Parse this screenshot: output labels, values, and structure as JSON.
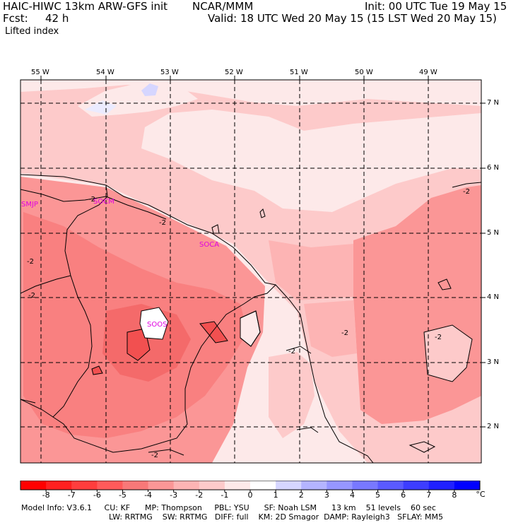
{
  "header": {
    "model_title": "HAIC-HIWC 13km ARW-GFS init",
    "org": "NCAR/MMM",
    "init": "Init: 00 UTC Tue 19 May 15",
    "fcst_label": "Fcst:",
    "fcst_value": "42 h",
    "valid": "Valid: 18 UTC Wed 20 May 15 (15 LST Wed 20 May 15)",
    "field": "Lifted index"
  },
  "map": {
    "lon_labels": [
      "55 W",
      "54 W",
      "53 W",
      "52 W",
      "51 W",
      "50 W",
      "49 W"
    ],
    "lat_labels": [
      "7 N",
      "6 N",
      "5 N",
      "4 N",
      "3 N",
      "2 N"
    ],
    "stations": [
      "SMJP",
      "SOCM",
      "SOCA",
      "SOOS"
    ],
    "contour_label": "-2"
  },
  "colorbar": {
    "unit": "°C",
    "labels": [
      "-8",
      "-7",
      "-6",
      "-5",
      "-4",
      "-3",
      "-2",
      "-1",
      "0",
      "1",
      "2",
      "3",
      "4",
      "5",
      "6",
      "7",
      "8"
    ],
    "colors": [
      "#ff0000",
      "#ff2020",
      "#ff3d3d",
      "#ff5a5a",
      "#f87878",
      "#fb9696",
      "#fdb4b4",
      "#fdcaca",
      "#fde9e9",
      "#ffffff",
      "#d6d6ff",
      "#b4b4ff",
      "#9696ff",
      "#7878ff",
      "#5a5aff",
      "#3d3dff",
      "#2020ff",
      "#0000ff"
    ]
  },
  "model_info": {
    "line1": "Model Info: V3.6.1     CU: KF      MP: Thompson     PBL: YSU      SF: Noah LSM      13 km    51 levels    60 sec",
    "line2": "LW: RRTMG    SW: RRTMG   DIFF: full    KM: 2D Smagor  DAMP: Rayleigh3   SFLAY: MM5"
  }
}
